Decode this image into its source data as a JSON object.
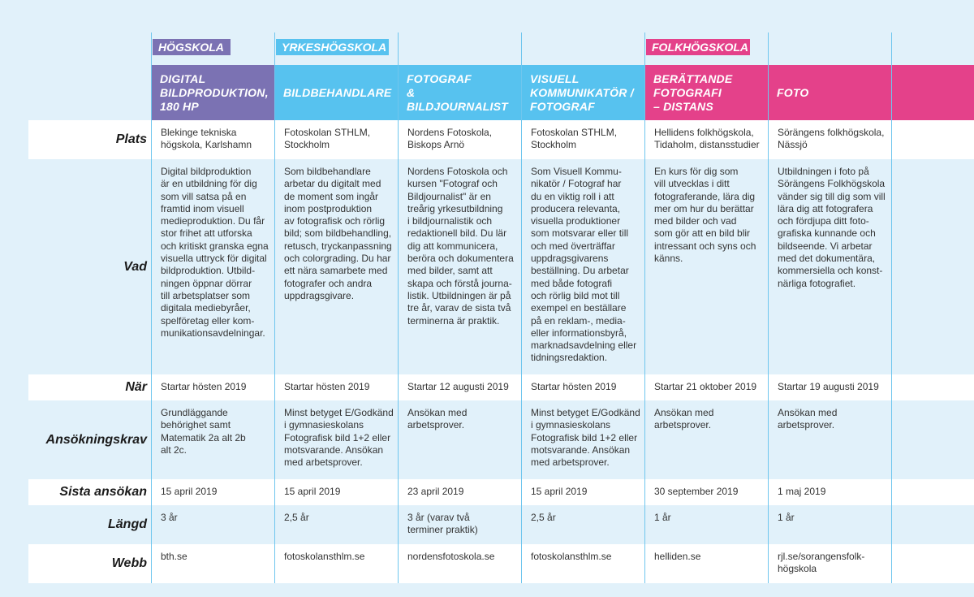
{
  "categories": {
    "hogskola": "HÖGSKOLA",
    "yrkeshogskola": "YRKESHÖGSKOLA",
    "folkhogskola": "FOLKHÖGSKOLA"
  },
  "colors": {
    "hogskola": "#7b72b3",
    "yrkeshogskola": "#57c2ef",
    "folkhogskola": "#e4418a",
    "background": "#e1f1fa",
    "divider": "#6fc6ee"
  },
  "row_labels": {
    "plats": "Plats",
    "vad": "Vad",
    "nar": "När",
    "ansokningskrav": "Ansökningskrav",
    "sista": "Sista ansökan",
    "langd": "Längd",
    "webb": "Webb"
  },
  "programs": [
    {
      "title": [
        "DIGITAL",
        "BILDPRODUKTION,",
        "180 HP"
      ],
      "plats": [
        "Blekinge tekniska",
        "högskola, Karlshamn"
      ],
      "vad": [
        "Digital bildproduktion",
        "är en utbildning för dig",
        "som vill satsa på en",
        "framtid inom visuell",
        "medieproduktion. Du får",
        "stor frihet att utforska",
        "och kritiskt granska egna",
        "visuella uttryck för digital",
        "bildproduktion. Utbild-",
        "ningen öppnar dörrar",
        "till arbetsplatser som",
        "digitala mediebyråer,",
        "spelföretag eller kom-",
        "munikationsavdelningar."
      ],
      "nar": [
        "Startar hösten 2019"
      ],
      "krav": [
        "Grundläggande",
        "behörighet samt",
        "Matematik 2a alt 2b",
        "alt 2c."
      ],
      "sista": [
        "15 april 2019"
      ],
      "langd": [
        "3 år"
      ],
      "webb": [
        "bth.se"
      ]
    },
    {
      "title": [
        "BILDBEHANDLARE"
      ],
      "plats": [
        "Fotoskolan STHLM,",
        "Stockholm"
      ],
      "vad": [
        "Som bildbehandlare",
        "arbetar du digitalt med",
        "de moment som ingår",
        "inom postproduktion",
        "av fotografisk och rörlig",
        "bild; som bildbehandling,",
        "retusch, tryckanpassning",
        "och colorgrading. Du har",
        "ett nära samarbete med",
        "fotografer och andra",
        "uppdragsgivare."
      ],
      "nar": [
        "Startar hösten 2019"
      ],
      "krav": [
        "Minst betyget E/Godkänd",
        "i gymnasieskolans",
        "Fotografisk bild 1+2 eller",
        "motsvarande. Ansökan",
        "med arbetsprover."
      ],
      "sista": [
        "15 april 2019"
      ],
      "langd": [
        "2,5 år"
      ],
      "webb": [
        "fotoskolansthlm.se"
      ]
    },
    {
      "title": [
        "FOTOGRAF",
        "& BILDJOURNALIST"
      ],
      "plats": [
        "Nordens Fotoskola,",
        "Biskops Arnö"
      ],
      "vad": [
        "Nordens Fotoskola och",
        "kursen \"Fotograf och",
        "Bildjournalist\" är en",
        "treårig yrkesutbildning",
        "i bildjournalistik och",
        "redaktionell bild. Du lär",
        "dig att kommunicera,",
        "beröra och dokumentera",
        "med bilder, samt att",
        "skapa och förstå journa-",
        "listik. Utbildningen är på",
        "tre år, varav de sista två",
        "terminerna är praktik."
      ],
      "nar": [
        "Startar 12 augusti 2019"
      ],
      "krav": [
        "Ansökan med",
        "arbetsprover."
      ],
      "sista": [
        "23 april 2019"
      ],
      "langd": [
        "3 år (varav två",
        "terminer praktik)"
      ],
      "webb": [
        "nordensfotoskola.se"
      ]
    },
    {
      "title": [
        "VISUELL",
        "KOMMUNIKATÖR /",
        "FOTOGRAF"
      ],
      "plats": [
        "Fotoskolan STHLM,",
        "Stockholm"
      ],
      "vad": [
        "Som Visuell Kommu-",
        "nikatör / Fotograf har",
        "du en viktig roll i att",
        "producera relevanta,",
        "visuella produktioner",
        "som motsvarar eller till",
        "och med överträffar",
        "uppdragsgivarens",
        "beställning. Du arbetar",
        "med både fotografi",
        "och rörlig bild mot till",
        "exempel en beställare",
        "på en reklam-, media-",
        "eller informationsbyrå,",
        "marknadsavdelning eller",
        "tidningsredaktion."
      ],
      "nar": [
        "Startar hösten 2019"
      ],
      "krav": [
        "Minst betyget E/Godkänd",
        "i gymnasieskolans",
        "Fotografisk bild 1+2 eller",
        "motsvarande. Ansökan",
        "med arbetsprover."
      ],
      "sista": [
        "15 april 2019"
      ],
      "langd": [
        "2,5 år"
      ],
      "webb": [
        "fotoskolansthlm.se"
      ]
    },
    {
      "title": [
        "BERÄTTANDE",
        "FOTOGRAFI",
        "– DISTANS"
      ],
      "plats": [
        "Hellidens folkhögskola,",
        "Tidaholm, distansstudier"
      ],
      "vad": [
        "En kurs för dig som",
        "vill utvecklas i ditt",
        "fotograferande, lära dig",
        "mer om hur du berättar",
        "med bilder och vad",
        "som gör att en bild blir",
        "intressant och syns och",
        "känns."
      ],
      "nar": [
        "Startar 21 oktober 2019"
      ],
      "krav": [
        "Ansökan med",
        "arbetsprover."
      ],
      "sista": [
        "30 september 2019"
      ],
      "langd": [
        "1 år"
      ],
      "webb": [
        "helliden.se"
      ]
    },
    {
      "title": [
        "FOTO"
      ],
      "plats": [
        "Sörängens folkhögskola,",
        "Nässjö"
      ],
      "vad": [
        "Utbildningen i foto på",
        "Sörängens Folkhögskola",
        "vänder sig till dig som vill",
        "lära dig att fotografera",
        "och fördjupa ditt foto-",
        "grafiska kunnande och",
        "bildseende. Vi arbetar",
        "med det dokumentära,",
        "kommersiella och konst-",
        "närliga fotografiet."
      ],
      "nar": [
        "Startar 19 augusti 2019"
      ],
      "krav": [
        "Ansökan med",
        "arbetsprover."
      ],
      "sista": [
        "1 maj 2019"
      ],
      "langd": [
        "1 år"
      ],
      "webb": [
        "rjl.se/sorangensfolk-",
        "högskola"
      ]
    }
  ]
}
